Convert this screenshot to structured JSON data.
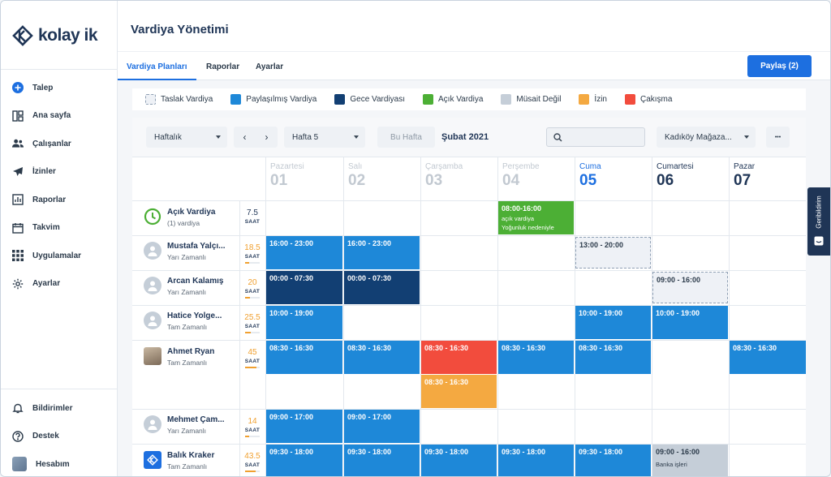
{
  "brand": {
    "name": "kolay ik",
    "color": "#1f3556",
    "accent": "#1d6fe0"
  },
  "sidebar": {
    "items": [
      {
        "label": "Talep",
        "icon": "plus-circle-icon"
      },
      {
        "label": "Ana sayfa",
        "icon": "dashboard-icon"
      },
      {
        "label": "Çalışanlar",
        "icon": "users-icon"
      },
      {
        "label": "İzinler",
        "icon": "airplane-icon"
      },
      {
        "label": "Raporlar",
        "icon": "chart-icon"
      },
      {
        "label": "Takvim",
        "icon": "calendar-icon"
      },
      {
        "label": "Uygulamalar",
        "icon": "apps-grid-icon"
      },
      {
        "label": "Ayarlar",
        "icon": "gear-icon"
      }
    ],
    "bottom": [
      {
        "label": "Bildirimler",
        "icon": "bell-icon"
      },
      {
        "label": "Destek",
        "icon": "help-icon"
      },
      {
        "label": "Hesabım",
        "icon": "avatar-icon"
      }
    ]
  },
  "header": {
    "title": "Vardiya Yönetimi"
  },
  "tabs": [
    {
      "label": "Vardiya Planları",
      "active": true
    },
    {
      "label": "Raporlar",
      "active": false
    },
    {
      "label": "Ayarlar",
      "active": false
    }
  ],
  "share_button": "Paylaş (2)",
  "legend": [
    {
      "label": "Taslak Vardiya",
      "color": "#eef1f6"
    },
    {
      "label": "Paylaşılmış Vardiya",
      "color": "#1e88d8"
    },
    {
      "label": "Gece Vardiyası",
      "color": "#123f73"
    },
    {
      "label": "Açık Vardiya",
      "color": "#4caf35"
    },
    {
      "label": "Müsait Değil",
      "color": "#c5ced8"
    },
    {
      "label": "İzin",
      "color": "#f4a941"
    },
    {
      "label": "Çakışma",
      "color": "#f24c3d"
    }
  ],
  "controls": {
    "view_select": "Haftalık",
    "week_select": "Hafta 5",
    "this_week": "Bu Hafta",
    "date_label": "Şubat 2021",
    "search_placeholder": "",
    "location_select": "Kadıköy Mağaza...",
    "more": "•••"
  },
  "days": [
    {
      "name": "Pazartesi",
      "num": "01",
      "state": "muted"
    },
    {
      "name": "Salı",
      "num": "02",
      "state": "muted"
    },
    {
      "name": "Çarşamba",
      "num": "03",
      "state": "muted"
    },
    {
      "name": "Perşembe",
      "num": "04",
      "state": "muted"
    },
    {
      "name": "Cuma",
      "num": "05",
      "state": "today"
    },
    {
      "name": "Cumartesi",
      "num": "06",
      "state": "future"
    },
    {
      "name": "Pazar",
      "num": "07",
      "state": "future"
    }
  ],
  "open_shift_row": {
    "name": "Açık Vardiya",
    "sub": "(1) vardiya",
    "hours": "7.5",
    "unit": "SAAT"
  },
  "employees": [
    {
      "name": "Mustafa Yalçı...",
      "type": "Yarı Zamanlı",
      "hours": "18.5",
      "unit": "SAAT",
      "fill": 0.3
    },
    {
      "name": "Arcan Kalamış",
      "type": "Yarı Zamanlı",
      "hours": "20",
      "unit": "SAAT",
      "fill": 0.35
    },
    {
      "name": "Hatice Yolge...",
      "type": "Tam Zamanlı",
      "hours": "25.5",
      "unit": "SAAT",
      "fill": 0.4
    },
    {
      "name": "Ahmet Ryan",
      "type": "Tam Zamanlı",
      "hours": "45",
      "unit": "SAAT",
      "fill": 0.75
    },
    {
      "name": "Mehmet Çam...",
      "type": "Yarı Zamanlı",
      "hours": "14",
      "unit": "SAAT",
      "fill": 0.25
    },
    {
      "name": "Balık Kraker",
      "type": "Tam Zamanlı",
      "hours": "43.5",
      "unit": "SAAT",
      "fill": 0.72
    }
  ],
  "shifts": {
    "open_thu": {
      "time": "08:00-16:00",
      "line1": "açık vardiya",
      "line2": "Yoğunluk nedeniyle"
    },
    "r1_mon": "16:00 - 23:00",
    "r1_tue": "16:00 - 23:00",
    "r1_fri": "13:00 - 20:00",
    "r2_mon": "00:00 - 07:30",
    "r2_tue": "00:00 - 07:30",
    "r2_sat": "09:00 - 16:00",
    "r3_mon": "10:00 - 19:00",
    "r3_fri": "10:00 - 19:00",
    "r3_sat": "10:00 - 19:00",
    "r4_mon": "08:30 - 16:30",
    "r4_tue": "08:30 - 16:30",
    "r4_wed": "08:30 - 16:30",
    "r4_wed2": "08:30 - 16:30",
    "r4_thu": "08:30 - 16:30",
    "r4_fri": "08:30 - 16:30",
    "r4_sun": "08:30 - 16:30",
    "r5_mon": "09:00 - 17:00",
    "r5_tue": "09:00 - 17:00",
    "r6_mon": "09:30 - 18:00",
    "r6_tue": "09:30 - 18:00",
    "r6_wed": "09:30 - 18:00",
    "r6_thu": "09:30 - 18:00",
    "r6_fri": "09:30 - 18:00",
    "r6_sat": {
      "time": "09:00 - 16:00",
      "note": "Banka işleri"
    }
  },
  "feedback": "Geribildirim"
}
